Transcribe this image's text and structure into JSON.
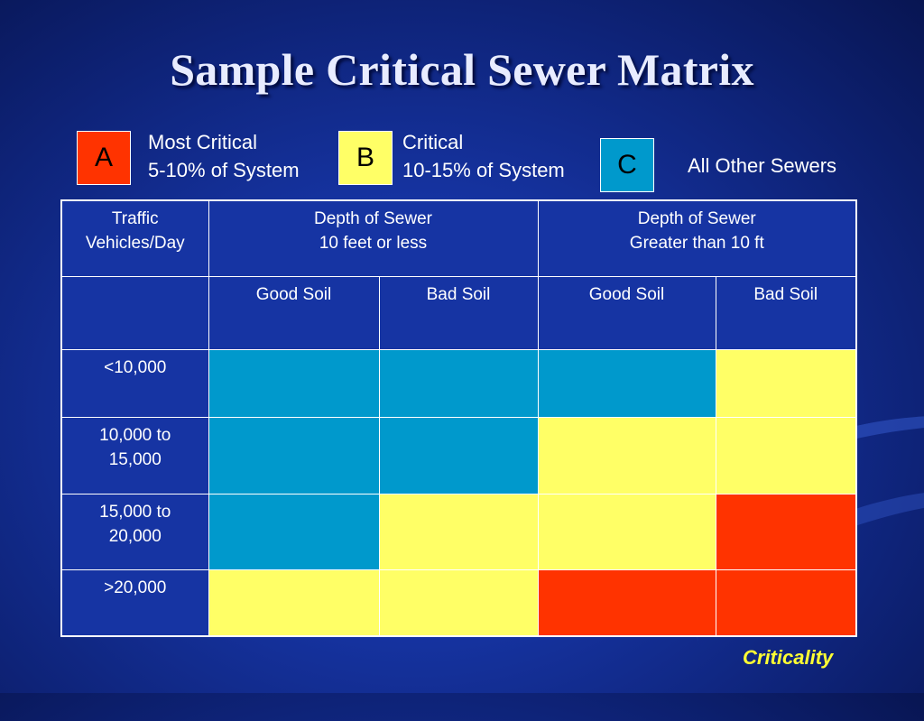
{
  "title": "Sample Critical Sewer Matrix",
  "colors": {
    "A": "#ff3300",
    "B": "#ffff66",
    "C": "#0099cc",
    "header_bg": "#1634a3"
  },
  "legend": [
    {
      "code": "A",
      "line1": "Most Critical",
      "line2": "5-10% of System"
    },
    {
      "code": "B",
      "line1": "Critical",
      "line2": "10-15% of System"
    },
    {
      "code": "C",
      "line1": "All Other Sewers",
      "line2": ""
    }
  ],
  "table": {
    "header_col1": [
      "Traffic",
      "Vehicles/Day"
    ],
    "header_group1": [
      "Depth of Sewer",
      "10 feet or less"
    ],
    "header_group2": [
      "Depth of Sewer",
      "Greater than 10 ft"
    ],
    "soil_labels": [
      "Good Soil",
      "Bad Soil",
      "Good Soil",
      "Bad Soil"
    ],
    "rows": [
      {
        "label": [
          "<10,000"
        ],
        "cells": [
          "C",
          "C",
          "C",
          "B"
        ]
      },
      {
        "label": [
          "10,000 to",
          "15,000"
        ],
        "cells": [
          "C",
          "C",
          "B",
          "B"
        ]
      },
      {
        "label": [
          "15,000 to",
          "20,000"
        ],
        "cells": [
          "C",
          "B",
          "B",
          "A"
        ]
      },
      {
        "label": [
          ">20,000"
        ],
        "cells": [
          "B",
          "B",
          "A",
          "A"
        ]
      }
    ]
  },
  "footer_label": "Criticality"
}
